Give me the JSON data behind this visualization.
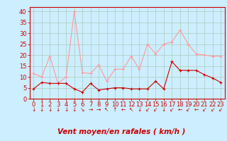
{
  "x": [
    0,
    1,
    2,
    3,
    4,
    5,
    6,
    7,
    8,
    9,
    10,
    11,
    12,
    13,
    14,
    15,
    16,
    17,
    18,
    19,
    20,
    21,
    22,
    23
  ],
  "wind_mean": [
    4.5,
    7.5,
    7,
    7,
    7,
    4.5,
    3,
    7,
    4,
    4.5,
    5,
    5,
    4.5,
    4.5,
    4.5,
    8,
    4.5,
    17,
    13,
    13,
    13,
    11,
    9.5,
    7.5
  ],
  "wind_gust": [
    11.5,
    10,
    19.5,
    7,
    10,
    40,
    12,
    11.5,
    15.5,
    8,
    13.5,
    13.5,
    19.5,
    13.5,
    25,
    20.5,
    25,
    26,
    31.5,
    25,
    20.5,
    20,
    19.5,
    19.5
  ],
  "mean_color": "#cc0000",
  "gust_color": "#ff9999",
  "bg_color": "#cceeff",
  "grid_color": "#aaccbb",
  "xlabel": "Vent moyen/en rafales ( km/h )",
  "ylim": [
    0,
    42
  ],
  "xlim": [
    -0.5,
    23.5
  ],
  "yticks": [
    0,
    5,
    10,
    15,
    20,
    25,
    30,
    35,
    40
  ],
  "xticks": [
    0,
    1,
    2,
    3,
    4,
    5,
    6,
    7,
    8,
    9,
    10,
    11,
    12,
    13,
    14,
    15,
    16,
    17,
    18,
    19,
    20,
    21,
    22,
    23
  ],
  "directions": [
    "↓",
    "↓",
    "↓",
    "↓",
    "↓",
    "↓",
    "↘",
    "→",
    "→",
    "↖",
    "↑",
    "←",
    "↖",
    "↓",
    "↙",
    "↙",
    "↓",
    "↙",
    "←",
    "↙",
    "←",
    "↙",
    "↙",
    "↙"
  ],
  "axis_fontsize": 7,
  "tick_fontsize": 6,
  "dir_fontsize": 5.5,
  "xlabel_fontsize": 7.5
}
